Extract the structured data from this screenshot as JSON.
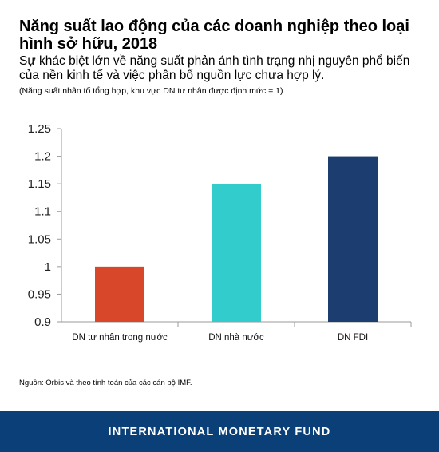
{
  "header": {
    "title": "Năng suất lao động của các doanh nghiệp theo loại hình sở hữu, 2018",
    "subtitle": "Sự khác biệt lớn về năng suất phản ánh tình trạng nhị nguyên phổ biến của nền kinh tế và việc phân bổ nguồn lực chưa hợp lý.",
    "note": "(Năng suất nhân tố tổng hợp, khu vực DN tư nhân được định mức = 1)"
  },
  "chart_data": {
    "type": "bar",
    "title": "Năng suất lao động của các doanh nghiệp theo loại hình sở hữu, 2018",
    "xlabel": "",
    "ylabel": "",
    "ylim": [
      0.9,
      1.25
    ],
    "yticks": [
      "0.9",
      "0.95",
      "1",
      "1.05",
      "1.1",
      "1.15",
      "1.2",
      "1.25"
    ],
    "categories": [
      "DN tư nhân trong nước",
      "DN nhà nước",
      "DN FDI"
    ],
    "values": [
      1.0,
      1.15,
      1.2
    ],
    "colors": [
      "#d9472b",
      "#33cccc",
      "#1b3d6f"
    ],
    "grid": false,
    "legend": "none"
  },
  "source": "Nguồn: Orbis và theo tính toán của các cán bộ IMF.",
  "footer": {
    "org": "INTERNATIONAL MONETARY FUND",
    "background": "#0a3f77"
  }
}
